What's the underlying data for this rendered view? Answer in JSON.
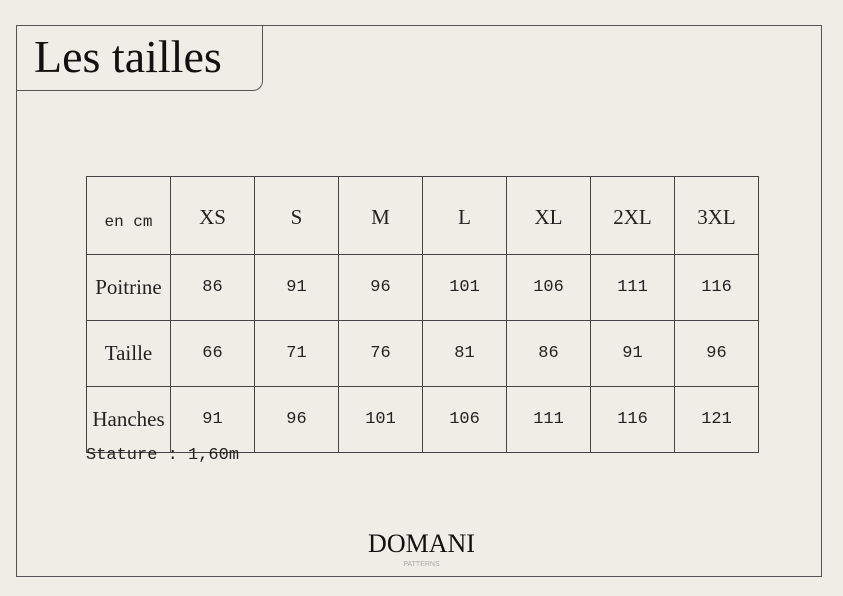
{
  "title": "Les tailles",
  "table": {
    "unit": "en cm",
    "sizes": [
      "XS",
      "S",
      "M",
      "L",
      "XL",
      "2XL",
      "3XL"
    ],
    "rows": [
      {
        "label": "Poitrine",
        "values": [
          "86",
          "91",
          "96",
          "101",
          "106",
          "111",
          "116"
        ]
      },
      {
        "label": "Taille",
        "values": [
          "66",
          "71",
          "76",
          "81",
          "86",
          "91",
          "96"
        ]
      },
      {
        "label": "Hanches",
        "values": [
          "91",
          "96",
          "101",
          "106",
          "111",
          "116",
          "121"
        ]
      }
    ]
  },
  "stature": "Stature : 1,60m",
  "logo": {
    "name": "DOMANI",
    "sub": "PATTERNS"
  }
}
